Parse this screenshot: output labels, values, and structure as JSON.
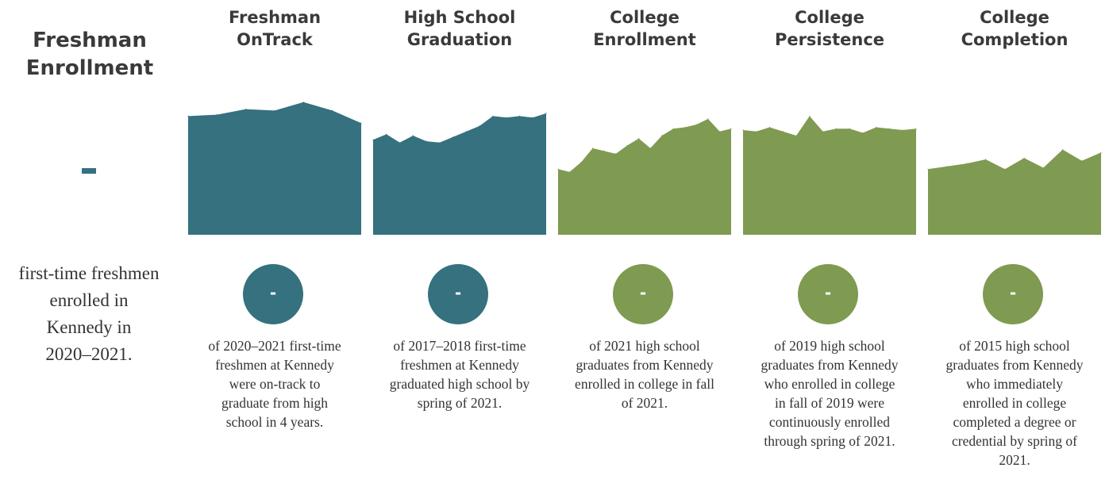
{
  "colors": {
    "teal": "#35717f",
    "green": "#7f9a51",
    "dash": "#35717f"
  },
  "freshman": {
    "title_line1": "Freshman",
    "title_line2": "Enrollment",
    "value": "-",
    "desc_line1": "first-time freshmen",
    "desc_line2": "enrolled in",
    "desc_line3": "Kennedy in",
    "desc_line4": "2020–2021."
  },
  "chart_data": [
    {
      "type": "area",
      "title": "Freshman OnTrack",
      "ylim": [
        0,
        100
      ],
      "color": "teal",
      "values": [
        85,
        86,
        90,
        89,
        95,
        89,
        80
      ]
    },
    {
      "type": "area",
      "title": "High School Graduation",
      "ylim": [
        0,
        100
      ],
      "color": "teal",
      "values": [
        68,
        72,
        66,
        71,
        67,
        66,
        70,
        74,
        78,
        85,
        84,
        85,
        84,
        87
      ]
    },
    {
      "type": "area",
      "title": "College Enrollment",
      "ylim": [
        0,
        100
      ],
      "color": "green",
      "values": [
        47,
        45,
        52,
        62,
        60,
        58,
        64,
        69,
        62,
        71,
        76,
        77,
        79,
        83,
        74,
        76
      ]
    },
    {
      "type": "area",
      "title": "College Persistence",
      "ylim": [
        0,
        100
      ],
      "color": "green",
      "values": [
        75,
        74,
        77,
        74,
        71,
        85,
        74,
        76,
        76,
        73,
        77,
        76,
        75,
        76
      ]
    },
    {
      "type": "area",
      "title": "College Completion",
      "ylim": [
        0,
        100
      ],
      "color": "green",
      "values": [
        47,
        49,
        51,
        54,
        47,
        55,
        48,
        61,
        53,
        59
      ]
    }
  ],
  "metrics": [
    {
      "title_line1": "Freshman",
      "title_line2": "OnTrack",
      "value": "-",
      "desc": [
        "of 2020–2021 first-time",
        "freshmen at Kennedy",
        "were on-track to",
        "graduate from high",
        "school in 4 years."
      ]
    },
    {
      "title_line1": "High School",
      "title_line2": "Graduation",
      "value": "-",
      "desc": [
        "of 2017–2018 first-time",
        "freshmen at Kennedy",
        "graduated high school by",
        "spring of 2021."
      ]
    },
    {
      "title_line1": "College",
      "title_line2": "Enrollment",
      "value": "-",
      "desc": [
        "of 2021 high school",
        "graduates from Kennedy",
        "enrolled in college in fall",
        "of 2021."
      ]
    },
    {
      "title_line1": "College",
      "title_line2": "Persistence",
      "value": "-",
      "desc": [
        "of 2019 high school",
        "graduates from Kennedy",
        "who enrolled in college",
        "in fall of 2019 were",
        "continuously enrolled",
        "through spring of 2021."
      ]
    },
    {
      "title_line1": "College",
      "title_line2": "Completion",
      "value": "-",
      "desc": [
        "of 2015 high school",
        "graduates from Kennedy",
        "who immediately",
        "enrolled in college",
        "completed a degree or",
        "credential by spring of",
        "2021."
      ]
    }
  ]
}
